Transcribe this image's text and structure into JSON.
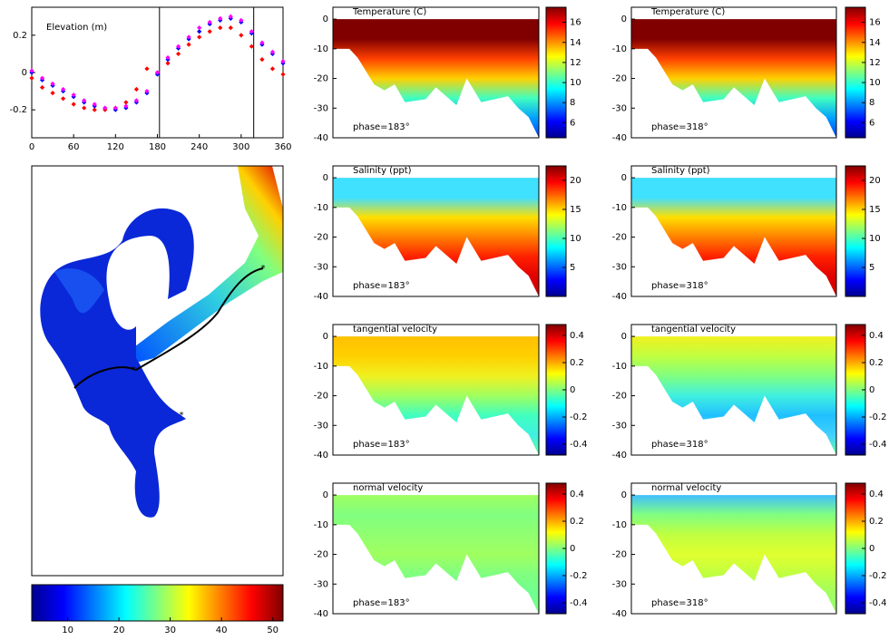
{
  "chart_data": [
    {
      "type": "scatter",
      "title": "Elevation (m)",
      "x": [
        0,
        15,
        30,
        45,
        60,
        75,
        90,
        105,
        120,
        135,
        150,
        165,
        180,
        195,
        210,
        225,
        240,
        255,
        270,
        285,
        300,
        315,
        330,
        345,
        360
      ],
      "series": [
        {
          "color": "#ff0000",
          "values": [
            -0.03,
            -0.08,
            -0.11,
            -0.14,
            -0.17,
            -0.19,
            -0.2,
            -0.2,
            -0.19,
            -0.16,
            -0.09,
            0.02,
            0,
            0.05,
            0.1,
            0.15,
            0.19,
            0.22,
            0.24,
            0.24,
            0.2,
            0.14,
            0.07,
            0.02,
            -0.01
          ]
        },
        {
          "color": "#0000ff",
          "values": [
            0,
            -0.04,
            -0.07,
            -0.1,
            -0.13,
            -0.16,
            -0.18,
            -0.19,
            -0.2,
            -0.19,
            -0.16,
            -0.11,
            -0.01,
            0.07,
            0.13,
            0.18,
            0.22,
            0.26,
            0.28,
            0.29,
            0.27,
            0.21,
            0.15,
            0.1,
            0.05
          ]
        },
        {
          "color": "#ff00ff",
          "values": [
            0.01,
            -0.03,
            -0.06,
            -0.09,
            -0.12,
            -0.15,
            -0.17,
            -0.19,
            -0.19,
            -0.18,
            -0.15,
            -0.1,
            0,
            0.08,
            0.14,
            0.19,
            0.24,
            0.27,
            0.29,
            0.3,
            0.28,
            0.22,
            0.16,
            0.11,
            0.06
          ]
        }
      ],
      "xlim": [
        0,
        360
      ],
      "xticks": [
        0,
        60,
        120,
        180,
        240,
        300,
        360
      ],
      "ylim": [
        -0.35,
        0.35
      ],
      "yticks": [
        -0.2,
        0,
        0.2
      ],
      "vlines": [
        183,
        318
      ]
    },
    {
      "type": "map",
      "xlim": [
        3,
        52
      ],
      "xticks": [
        10,
        20,
        30,
        40,
        50
      ]
    },
    {
      "type": "section",
      "title": "Temperature (C)",
      "annotation": "phase=183°",
      "ylim": [
        -40,
        4
      ],
      "yticks": [
        0,
        -10,
        -20,
        -30,
        -40
      ],
      "zlim": [
        4.5,
        17.5
      ],
      "zticks": [
        6,
        8,
        10,
        12,
        14,
        16
      ],
      "colors": [
        "#800000",
        "#800000",
        "#ff4000",
        "#ffd000",
        "#40ffc0",
        "#00a0ff",
        "#0040ff"
      ]
    },
    {
      "type": "section",
      "title": "Temperature (C)",
      "annotation": "phase=318°",
      "ylim": [
        -40,
        4
      ],
      "yticks": [
        0,
        -10,
        -20,
        -30,
        -40
      ],
      "zlim": [
        4.5,
        17.5
      ],
      "zticks": [
        6,
        8,
        10,
        12,
        14,
        16
      ],
      "colors": [
        "#800000",
        "#800000",
        "#ff4000",
        "#ffd000",
        "#40ffc0",
        "#00a0ff",
        "#0040ff"
      ]
    },
    {
      "type": "section",
      "title": "Salinity (ppt)",
      "annotation": "phase=183°",
      "ylim": [
        -40,
        4
      ],
      "yticks": [
        0,
        -10,
        -20,
        -30,
        -40
      ],
      "zlim": [
        0,
        22.5
      ],
      "zticks": [
        5,
        10,
        15,
        20
      ],
      "colors": [
        "#40e0ff",
        "#40e0ff",
        "#ffe000",
        "#ff8000",
        "#ff2000",
        "#e00000",
        "#d00000"
      ]
    },
    {
      "type": "section",
      "title": "Salinity (ppt)",
      "annotation": "phase=318°",
      "ylim": [
        -40,
        4
      ],
      "yticks": [
        0,
        -10,
        -20,
        -30,
        -40
      ],
      "zlim": [
        0,
        22.5
      ],
      "zticks": [
        5,
        10,
        15,
        20
      ],
      "colors": [
        "#40e0ff",
        "#40e0ff",
        "#ffe000",
        "#ff8000",
        "#ff2000",
        "#e00000",
        "#d00000"
      ]
    },
    {
      "type": "section",
      "title": "tangential velocity",
      "annotation": "phase=183°",
      "ylim": [
        -40,
        4
      ],
      "yticks": [
        0,
        -10,
        -20,
        -30,
        -40
      ],
      "zlim": [
        -0.48,
        0.48
      ],
      "zticks": [
        {
          "value": 0.4,
          "label": "0.4"
        },
        {
          "value": 0.2,
          "label": "0.2"
        },
        0,
        {
          "value": -0.2,
          "label": "-0.2"
        },
        {
          "value": -0.4,
          "label": "-0.4"
        }
      ],
      "colors": [
        "#ffc000",
        "#ffd000",
        "#f0f020",
        "#a0ff60",
        "#40ffc0",
        "#40f0e0",
        "#60ffa0"
      ]
    },
    {
      "type": "section",
      "title": "tangential velocity",
      "annotation": "phase=318°",
      "ylim": [
        -40,
        4
      ],
      "yticks": [
        0,
        -10,
        -20,
        -30,
        -40
      ],
      "zlim": [
        -0.48,
        0.48
      ],
      "zticks": [
        {
          "value": 0.4,
          "label": "0.4"
        },
        {
          "value": 0.2,
          "label": "0.2"
        },
        0,
        {
          "value": -0.2,
          "label": "-0.2"
        },
        {
          "value": -0.4,
          "label": "-0.4"
        }
      ],
      "colors": [
        "#f0f020",
        "#c0ff40",
        "#80ff80",
        "#40f0e0",
        "#20c0ff",
        "#40d0ff",
        "#60ffa0"
      ]
    },
    {
      "type": "section",
      "title": "normal velocity",
      "annotation": "phase=183°",
      "ylim": [
        -40,
        4
      ],
      "yticks": [
        0,
        -10,
        -20,
        -30,
        -40
      ],
      "zlim": [
        -0.48,
        0.48
      ],
      "zticks": [
        {
          "value": 0.4,
          "label": "0.4"
        },
        {
          "value": 0.2,
          "label": "0.2"
        },
        0,
        {
          "value": -0.2,
          "label": "-0.2"
        },
        {
          "value": -0.4,
          "label": "-0.4"
        }
      ],
      "colors": [
        "#a0ff60",
        "#80ff80",
        "#90ff70",
        "#a0ff60",
        "#80ff80",
        "#70ff90",
        "#80ff80"
      ]
    },
    {
      "type": "section",
      "title": "normal velocity",
      "annotation": "phase=318°",
      "ylim": [
        -40,
        4
      ],
      "yticks": [
        0,
        -10,
        -20,
        -30,
        -40
      ],
      "zlim": [
        -0.48,
        0.48
      ],
      "zticks": [
        {
          "value": 0.4,
          "label": "0.4"
        },
        {
          "value": 0.2,
          "label": "0.2"
        },
        0,
        {
          "value": -0.2,
          "label": "-0.2"
        },
        {
          "value": -0.4,
          "label": "-0.4"
        }
      ],
      "colors": [
        "#40c0ff",
        "#80ff80",
        "#c0ff40",
        "#e0ff30",
        "#c0ff40",
        "#a0ff60",
        "#90ff70"
      ]
    }
  ]
}
